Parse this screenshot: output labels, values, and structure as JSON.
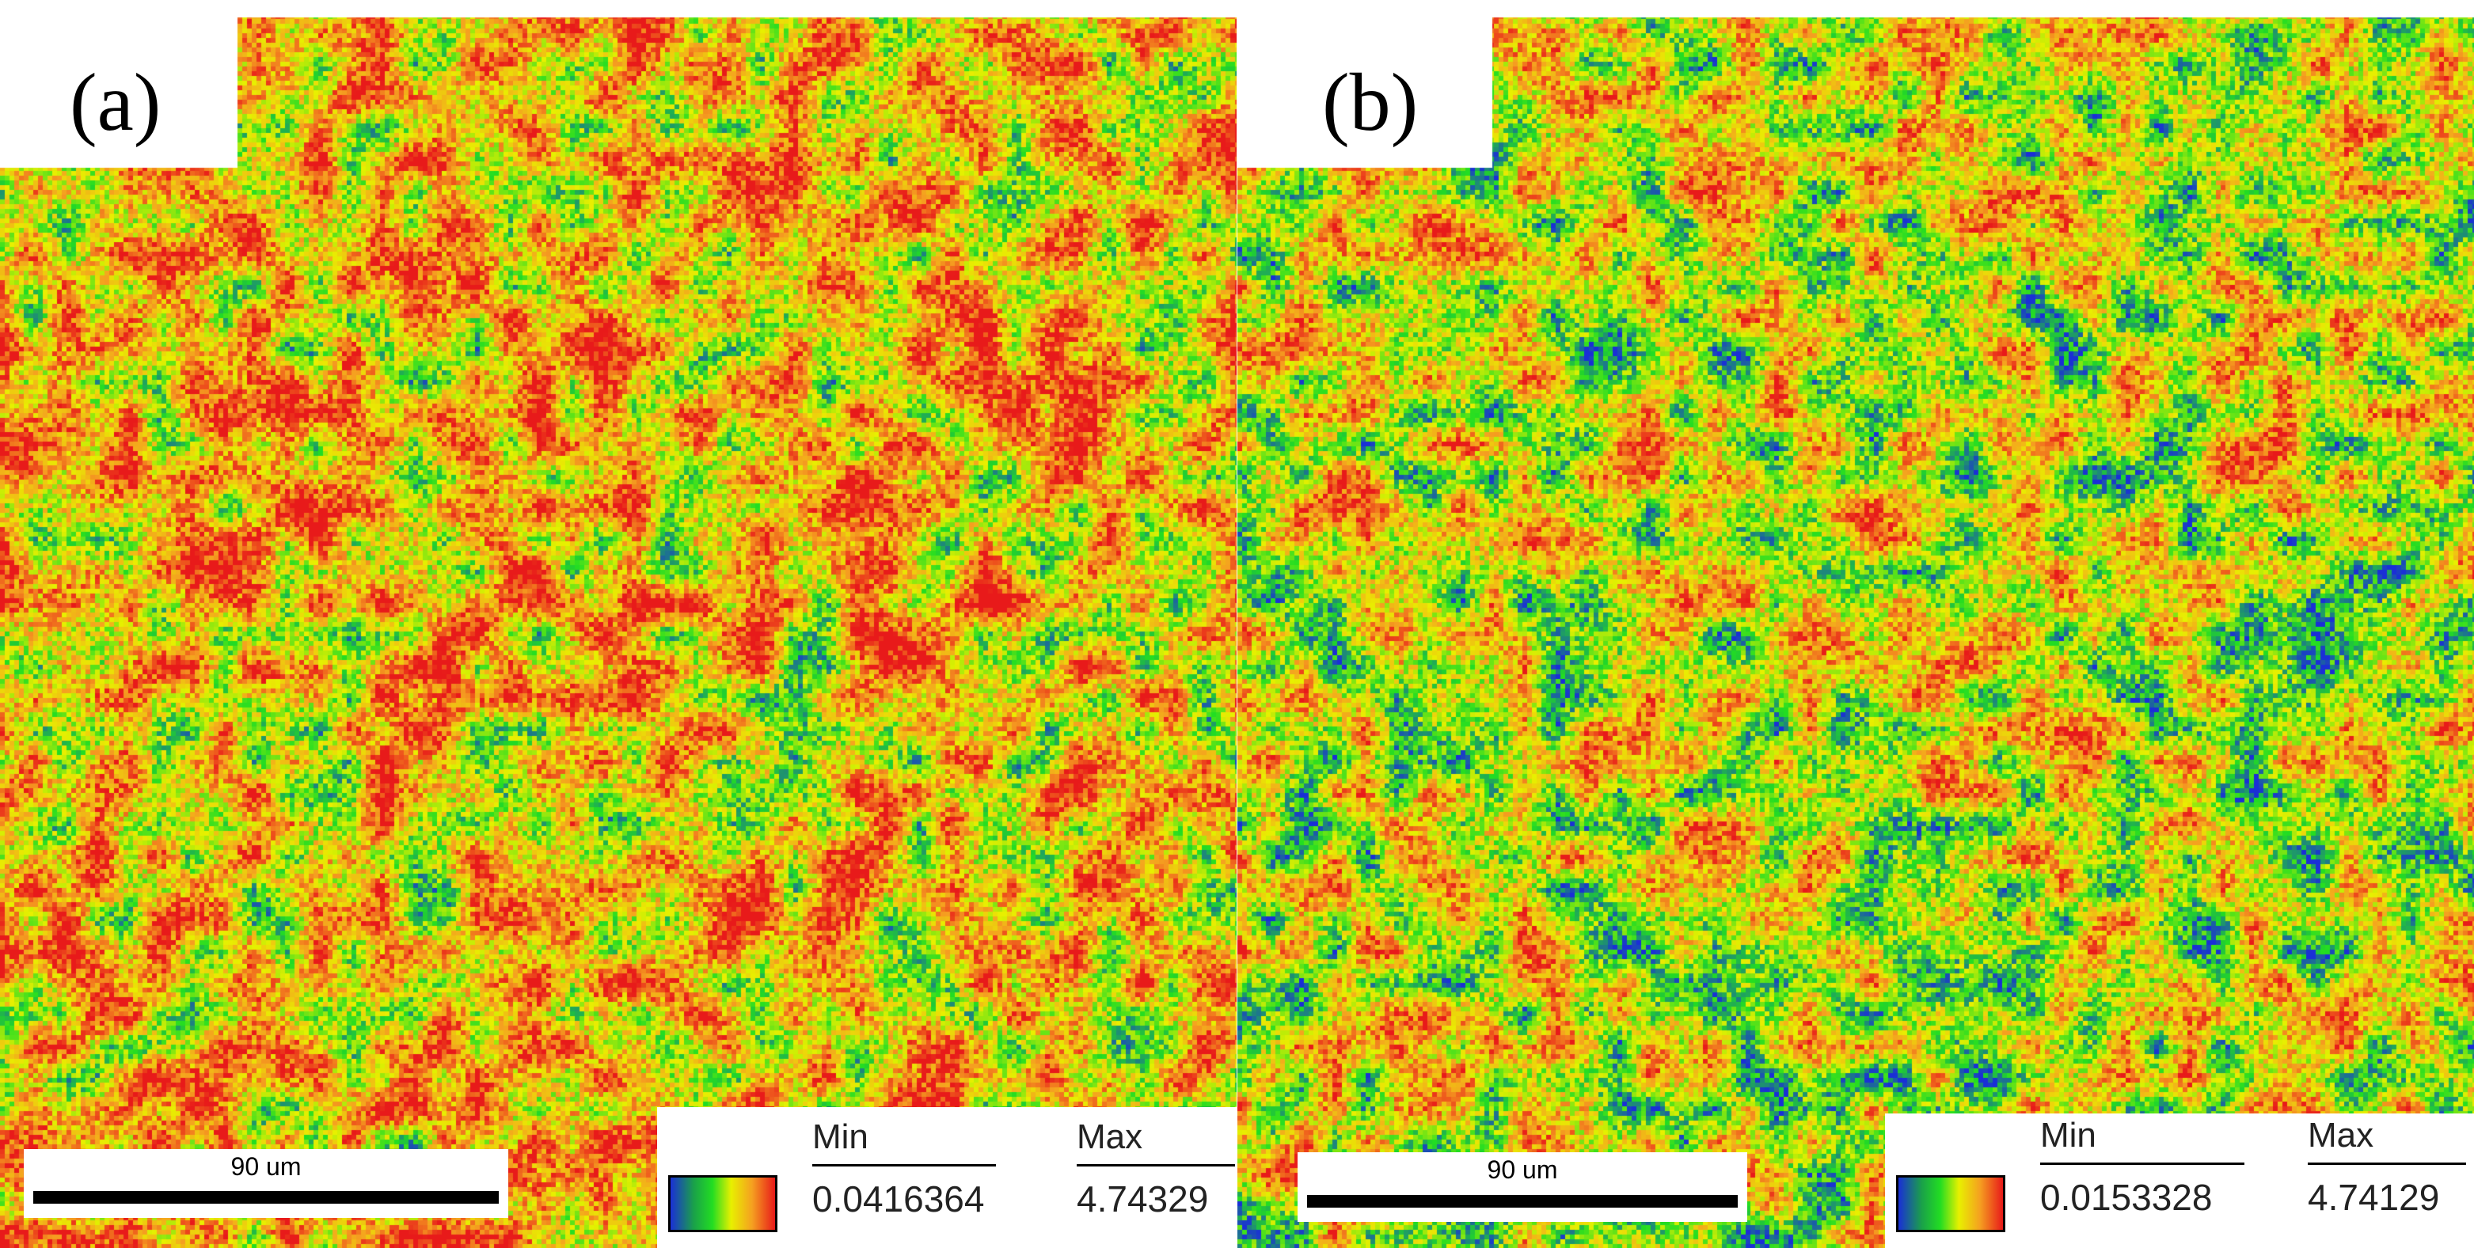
{
  "panels": [
    {
      "label": "(a)",
      "scale_bar": "90 um",
      "legend": {
        "min_label": "Min",
        "max_label": "Max",
        "min_value": "0.0416364",
        "max_value": "4.74329"
      }
    },
    {
      "label": "(b)",
      "scale_bar": "90 um",
      "legend": {
        "min_label": "Min",
        "max_label": "Max",
        "min_value": "0.0153328",
        "max_value": "4.74129"
      }
    }
  ],
  "colors": {
    "scale_low": "#1a2fd6",
    "scale_mid_low": "#22dd22",
    "scale_mid": "#e8f000",
    "scale_mid_high": "#f5a020",
    "scale_high": "#e81a1a"
  }
}
